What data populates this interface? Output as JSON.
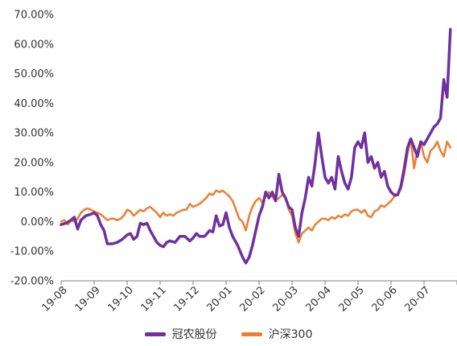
{
  "chart_data": {
    "type": "line",
    "title": "",
    "xlabel": "",
    "ylabel": "",
    "y_unit": "%",
    "ylim": [
      -20,
      70
    ],
    "y_ticks": [
      -20,
      -10,
      0,
      10,
      20,
      30,
      40,
      50,
      60,
      70
    ],
    "y_tick_labels": [
      "-20.00%",
      "-10.00%",
      "0.00%",
      "10.00%",
      "20.00%",
      "30.00%",
      "40.00%",
      "50.00%",
      "60.00%",
      "70.00%"
    ],
    "x_tick_labels": [
      "19-08",
      "19-09",
      "19-10",
      "19-11",
      "19-12",
      "20-01",
      "20-02",
      "20-03",
      "20-04",
      "20-05",
      "20-06",
      "20-07"
    ],
    "xlim": [
      0,
      12
    ],
    "grid": false,
    "legend_position": "bottom",
    "series": [
      {
        "name": "冠农股份",
        "color": "#7030a0",
        "points": [
          [
            0.0,
            -1.0
          ],
          [
            0.15,
            -0.5
          ],
          [
            0.3,
            0.5
          ],
          [
            0.4,
            1.5
          ],
          [
            0.5,
            -2.5
          ],
          [
            0.6,
            0.5
          ],
          [
            0.75,
            2.0
          ],
          [
            0.9,
            2.5
          ],
          [
            1.0,
            3.0
          ],
          [
            1.1,
            2.0
          ],
          [
            1.2,
            -1.0
          ],
          [
            1.3,
            -3.0
          ],
          [
            1.4,
            -7.5
          ],
          [
            1.55,
            -7.5
          ],
          [
            1.7,
            -7.0
          ],
          [
            1.85,
            -6.0
          ],
          [
            2.0,
            -4.5
          ],
          [
            2.1,
            -4.0
          ],
          [
            2.2,
            -6.0
          ],
          [
            2.3,
            -5.0
          ],
          [
            2.4,
            -0.5
          ],
          [
            2.5,
            -1.0
          ],
          [
            2.6,
            -0.5
          ],
          [
            2.7,
            -3.0
          ],
          [
            2.8,
            -5.0
          ],
          [
            2.9,
            -7.0
          ],
          [
            3.0,
            -8.0
          ],
          [
            3.1,
            -8.5
          ],
          [
            3.2,
            -7.0
          ],
          [
            3.3,
            -6.5
          ],
          [
            3.45,
            -7.0
          ],
          [
            3.6,
            -5.0
          ],
          [
            3.75,
            -5.0
          ],
          [
            3.9,
            -6.5
          ],
          [
            4.0,
            -5.5
          ],
          [
            4.1,
            -4.0
          ],
          [
            4.2,
            -5.0
          ],
          [
            4.35,
            -5.0
          ],
          [
            4.5,
            -3.0
          ],
          [
            4.6,
            -3.5
          ],
          [
            4.7,
            2.0
          ],
          [
            4.8,
            -1.5
          ],
          [
            4.9,
            -1.0
          ],
          [
            5.0,
            3.0
          ],
          [
            5.1,
            -2.0
          ],
          [
            5.2,
            -5.0
          ],
          [
            5.35,
            -8.0
          ],
          [
            5.5,
            -12.0
          ],
          [
            5.6,
            -14.0
          ],
          [
            5.7,
            -12.0
          ],
          [
            5.8,
            -8.0
          ],
          [
            5.9,
            -3.0
          ],
          [
            6.0,
            2.0
          ],
          [
            6.1,
            5.0
          ],
          [
            6.2,
            10.0
          ],
          [
            6.3,
            8.0
          ],
          [
            6.4,
            10.0
          ],
          [
            6.5,
            7.0
          ],
          [
            6.6,
            16.0
          ],
          [
            6.7,
            10.0
          ],
          [
            6.8,
            8.0
          ],
          [
            6.9,
            5.0
          ],
          [
            7.0,
            4.0
          ],
          [
            7.1,
            -2.0
          ],
          [
            7.2,
            -5.0
          ],
          [
            7.3,
            3.0
          ],
          [
            7.4,
            8.0
          ],
          [
            7.5,
            15.0
          ],
          [
            7.6,
            12.0
          ],
          [
            7.7,
            20.0
          ],
          [
            7.8,
            30.0
          ],
          [
            7.9,
            22.0
          ],
          [
            8.0,
            15.0
          ],
          [
            8.1,
            13.0
          ],
          [
            8.2,
            15.0
          ],
          [
            8.3,
            11.0
          ],
          [
            8.4,
            22.0
          ],
          [
            8.5,
            17.0
          ],
          [
            8.6,
            13.0
          ],
          [
            8.7,
            11.0
          ],
          [
            8.8,
            15.0
          ],
          [
            8.9,
            25.0
          ],
          [
            9.0,
            27.0
          ],
          [
            9.1,
            25.0
          ],
          [
            9.2,
            30.0
          ],
          [
            9.3,
            20.0
          ],
          [
            9.4,
            22.0
          ],
          [
            9.5,
            18.0
          ],
          [
            9.6,
            20.0
          ],
          [
            9.7,
            15.0
          ],
          [
            9.8,
            17.0
          ],
          [
            9.9,
            12.0
          ],
          [
            10.0,
            10.0
          ],
          [
            10.1,
            9.0
          ],
          [
            10.2,
            9.0
          ],
          [
            10.3,
            12.0
          ],
          [
            10.4,
            18.0
          ],
          [
            10.5,
            25.0
          ],
          [
            10.6,
            28.0
          ],
          [
            10.7,
            25.0
          ],
          [
            10.8,
            22.0
          ],
          [
            10.9,
            27.0
          ],
          [
            11.0,
            26.0
          ],
          [
            11.1,
            28.0
          ],
          [
            11.2,
            30.0
          ],
          [
            11.3,
            32.0
          ],
          [
            11.4,
            33.0
          ],
          [
            11.5,
            35.0
          ],
          [
            11.6,
            48.0
          ],
          [
            11.7,
            42.0
          ],
          [
            11.8,
            65.0
          ]
        ]
      },
      {
        "name": "沪深300",
        "color": "#ed7d31",
        "points": [
          [
            0.0,
            0.0
          ],
          [
            0.1,
            0.5
          ],
          [
            0.2,
            -1.0
          ],
          [
            0.3,
            0.5
          ],
          [
            0.4,
            0.0
          ],
          [
            0.5,
            1.0
          ],
          [
            0.6,
            3.0
          ],
          [
            0.7,
            4.0
          ],
          [
            0.8,
            4.5
          ],
          [
            0.9,
            4.0
          ],
          [
            1.0,
            3.5
          ],
          [
            1.1,
            3.0
          ],
          [
            1.2,
            2.5
          ],
          [
            1.3,
            1.5
          ],
          [
            1.4,
            0.5
          ],
          [
            1.5,
            1.0
          ],
          [
            1.6,
            1.0
          ],
          [
            1.7,
            0.5
          ],
          [
            1.8,
            1.0
          ],
          [
            1.9,
            2.0
          ],
          [
            2.0,
            4.0
          ],
          [
            2.1,
            3.5
          ],
          [
            2.2,
            2.0
          ],
          [
            2.3,
            3.0
          ],
          [
            2.4,
            4.0
          ],
          [
            2.5,
            3.5
          ],
          [
            2.6,
            4.5
          ],
          [
            2.7,
            5.0
          ],
          [
            2.8,
            4.0
          ],
          [
            2.9,
            3.0
          ],
          [
            3.0,
            1.5
          ],
          [
            3.1,
            3.0
          ],
          [
            3.2,
            2.0
          ],
          [
            3.3,
            2.5
          ],
          [
            3.4,
            2.0
          ],
          [
            3.5,
            3.0
          ],
          [
            3.6,
            3.5
          ],
          [
            3.7,
            4.0
          ],
          [
            3.8,
            4.0
          ],
          [
            3.9,
            6.0
          ],
          [
            4.0,
            5.0
          ],
          [
            4.1,
            5.5
          ],
          [
            4.2,
            6.0
          ],
          [
            4.3,
            7.0
          ],
          [
            4.4,
            8.0
          ],
          [
            4.5,
            9.5
          ],
          [
            4.6,
            9.0
          ],
          [
            4.7,
            10.5
          ],
          [
            4.8,
            10.0
          ],
          [
            4.9,
            10.5
          ],
          [
            5.0,
            9.5
          ],
          [
            5.1,
            8.5
          ],
          [
            5.2,
            7.0
          ],
          [
            5.3,
            4.0
          ],
          [
            5.4,
            1.0
          ],
          [
            5.5,
            0.0
          ],
          [
            5.6,
            -3.0
          ],
          [
            5.7,
            2.0
          ],
          [
            5.8,
            5.0
          ],
          [
            5.9,
            7.0
          ],
          [
            6.0,
            8.0
          ],
          [
            6.1,
            6.5
          ],
          [
            6.2,
            8.5
          ],
          [
            6.3,
            10.0
          ],
          [
            6.4,
            8.5
          ],
          [
            6.5,
            7.0
          ],
          [
            6.6,
            8.0
          ],
          [
            6.7,
            9.0
          ],
          [
            6.8,
            8.5
          ],
          [
            6.9,
            4.0
          ],
          [
            7.0,
            2.0
          ],
          [
            7.1,
            -4.0
          ],
          [
            7.2,
            -7.0
          ],
          [
            7.3,
            -4.0
          ],
          [
            7.4,
            -3.0
          ],
          [
            7.5,
            -2.0
          ],
          [
            7.6,
            -3.0
          ],
          [
            7.7,
            -1.0
          ],
          [
            7.8,
            0.0
          ],
          [
            7.9,
            1.0
          ],
          [
            8.0,
            1.0
          ],
          [
            8.1,
            0.5
          ],
          [
            8.2,
            1.5
          ],
          [
            8.3,
            1.0
          ],
          [
            8.4,
            2.0
          ],
          [
            8.5,
            1.5
          ],
          [
            8.6,
            2.5
          ],
          [
            8.7,
            2.0
          ],
          [
            8.8,
            3.5
          ],
          [
            8.9,
            4.0
          ],
          [
            9.0,
            4.0
          ],
          [
            9.1,
            3.0
          ],
          [
            9.2,
            4.0
          ],
          [
            9.3,
            2.0
          ],
          [
            9.4,
            1.5
          ],
          [
            9.5,
            3.5
          ],
          [
            9.6,
            4.0
          ],
          [
            9.7,
            5.5
          ],
          [
            9.8,
            5.0
          ],
          [
            9.9,
            6.0
          ],
          [
            10.0,
            7.0
          ],
          [
            10.1,
            8.5
          ],
          [
            10.2,
            9.0
          ],
          [
            10.3,
            11.0
          ],
          [
            10.4,
            16.0
          ],
          [
            10.5,
            23.0
          ],
          [
            10.6,
            28.0
          ],
          [
            10.7,
            18.0
          ],
          [
            10.8,
            24.0
          ],
          [
            10.9,
            27.0
          ],
          [
            11.0,
            22.0
          ],
          [
            11.1,
            20.0
          ],
          [
            11.2,
            24.0
          ],
          [
            11.3,
            25.0
          ],
          [
            11.4,
            27.0
          ],
          [
            11.5,
            24.0
          ],
          [
            11.6,
            22.0
          ],
          [
            11.7,
            27.0
          ],
          [
            11.8,
            25.0
          ]
        ]
      }
    ]
  }
}
